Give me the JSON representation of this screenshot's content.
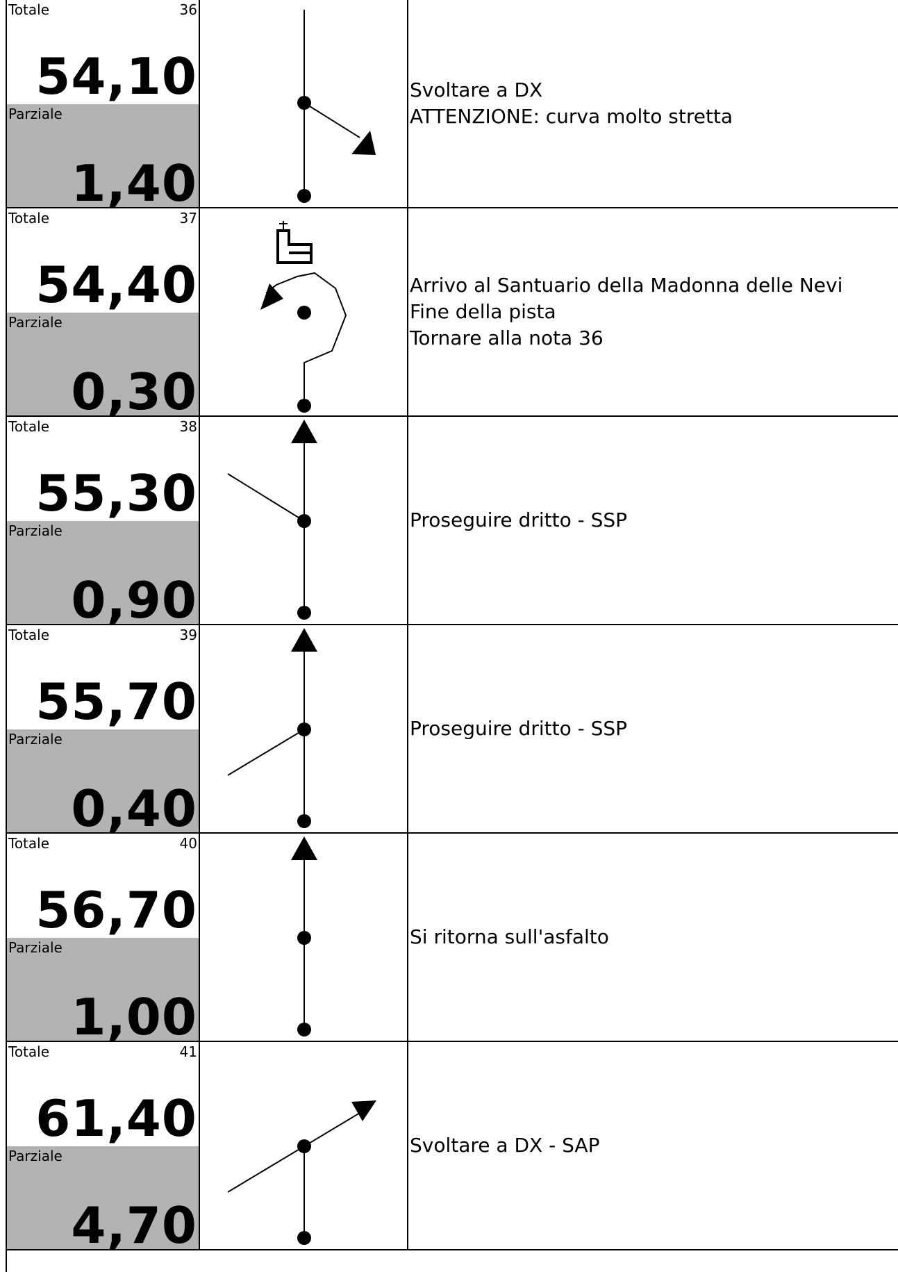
{
  "labels": {
    "totale": "Totale",
    "parziale": "Parziale"
  },
  "notes": [
    {
      "number": "36",
      "totale": "54,10",
      "parziale": "1,40",
      "text": [
        "Svoltare a DX",
        "ATTENZIONE: curva molto stretta"
      ],
      "icon": "sharp-right-turn-icon"
    },
    {
      "number": "37",
      "totale": "54,40",
      "parziale": "0,30",
      "text": [
        "Arrivo al Santuario della Madonna delle Nevi",
        "Fine della pista",
        "Tornare alla nota 36"
      ],
      "icon": "u-turn-church-icon"
    },
    {
      "number": "38",
      "totale": "55,30",
      "parziale": "0,90",
      "text": [
        "Proseguire dritto - SSP"
      ],
      "icon": "straight-left-junction-icon"
    },
    {
      "number": "39",
      "totale": "55,70",
      "parziale": "0,40",
      "text": [
        "Proseguire dritto - SSP"
      ],
      "icon": "straight-lower-left-junction-icon"
    },
    {
      "number": "40",
      "totale": "56,70",
      "parziale": "1,00",
      "text": [
        "Si ritorna sull'asfalto"
      ],
      "icon": "straight-icon"
    },
    {
      "number": "41",
      "totale": "61,40",
      "parziale": "4,70",
      "text": [
        "Svoltare a DX - SAP"
      ],
      "icon": "right-turn-icon"
    }
  ]
}
